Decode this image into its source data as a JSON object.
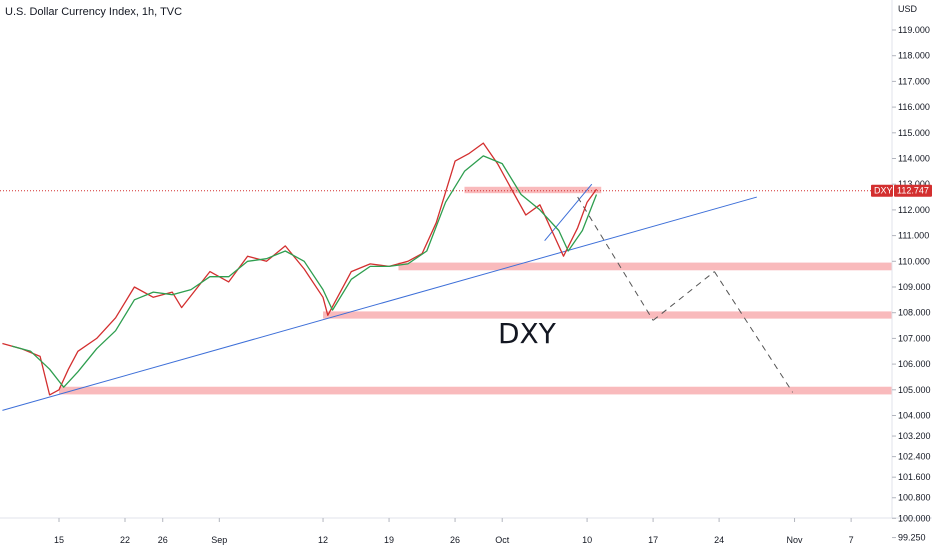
{
  "chart_data": {
    "type": "line",
    "title": "U.S. Dollar Currency Index, 1h, TVC",
    "currency_label": "USD",
    "ticker_badge": "DXY",
    "last_price_label": "112.747",
    "last_price": 112.747,
    "annotation": "DXY",
    "ylim": [
      99.25,
      119.2
    ],
    "yticks": [
      {
        "v": 119.0,
        "label": "119.000"
      },
      {
        "v": 118.0,
        "label": "118.000"
      },
      {
        "v": 117.0,
        "label": "117.000"
      },
      {
        "v": 116.0,
        "label": "116.000"
      },
      {
        "v": 115.0,
        "label": "115.000"
      },
      {
        "v": 114.0,
        "label": "114.000"
      },
      {
        "v": 113.0,
        "label": "113.000"
      },
      {
        "v": 112.0,
        "label": "112.000"
      },
      {
        "v": 111.0,
        "label": "111.000"
      },
      {
        "v": 110.0,
        "label": "110.000"
      },
      {
        "v": 109.0,
        "label": "109.000"
      },
      {
        "v": 108.0,
        "label": "108.000"
      },
      {
        "v": 107.0,
        "label": "107.000"
      },
      {
        "v": 106.0,
        "label": "106.000"
      },
      {
        "v": 105.0,
        "label": "105.000"
      },
      {
        "v": 104.0,
        "label": "104.000"
      },
      {
        "v": 103.2,
        "label": "103.200"
      },
      {
        "v": 102.4,
        "label": "102.400"
      },
      {
        "v": 101.6,
        "label": "101.600"
      },
      {
        "v": 100.8,
        "label": "100.800"
      },
      {
        "v": 100.0,
        "label": "100.000"
      },
      {
        "v": 99.25,
        "label": "99.250"
      }
    ],
    "xticks": [
      {
        "label": "15",
        "day": 0
      },
      {
        "label": "22",
        "day": 7
      },
      {
        "label": "26",
        "day": 11
      },
      {
        "label": "Sep",
        "day": 17
      },
      {
        "label": "12",
        "day": 28
      },
      {
        "label": "19",
        "day": 35
      },
      {
        "label": "26",
        "day": 42
      },
      {
        "label": "Oct",
        "day": 47
      },
      {
        "label": "10",
        "day": 56
      },
      {
        "label": "17",
        "day": 63
      },
      {
        "label": "24",
        "day": 70
      },
      {
        "label": "Nov",
        "day": 78
      },
      {
        "label": "7",
        "day": 84
      }
    ],
    "series": [
      {
        "color": "#d32f2f",
        "x": [
          -6,
          -4,
          -2,
          -1,
          0,
          1,
          2,
          4,
          6,
          8,
          10,
          12,
          13,
          16,
          18,
          20,
          22,
          24,
          26,
          28,
          28.5,
          31,
          33,
          35,
          37,
          38.5,
          40,
          42,
          43.5,
          45,
          46.5,
          48,
          49.5,
          51,
          52.5,
          53.5,
          55,
          56,
          57
        ],
        "y": [
          106.8,
          106.6,
          106.3,
          104.8,
          105.0,
          105.8,
          106.5,
          107.0,
          107.8,
          109.0,
          108.6,
          108.8,
          108.2,
          109.6,
          109.2,
          110.2,
          110.0,
          110.6,
          109.7,
          108.6,
          107.9,
          109.6,
          109.9,
          109.8,
          110.0,
          110.3,
          111.5,
          113.9,
          114.2,
          114.6,
          113.8,
          112.8,
          111.8,
          112.2,
          111.0,
          110.2,
          111.3,
          112.3,
          112.8
        ]
      },
      {
        "color": "#2e9e4f",
        "x": [
          -5,
          -3,
          -1,
          0.5,
          2,
          4,
          6,
          8,
          10,
          12,
          14,
          16,
          18,
          20,
          22,
          24,
          26,
          28,
          29,
          31,
          33,
          35,
          37,
          39,
          41,
          43,
          45,
          47,
          49,
          51,
          53,
          54,
          55.5,
          57
        ],
        "y": [
          106.7,
          106.5,
          105.8,
          105.1,
          105.7,
          106.6,
          107.3,
          108.5,
          108.8,
          108.7,
          108.9,
          109.4,
          109.4,
          110.0,
          110.1,
          110.4,
          110.0,
          108.9,
          108.1,
          109.3,
          109.8,
          109.8,
          109.9,
          110.4,
          112.3,
          113.5,
          114.1,
          113.8,
          112.6,
          112.0,
          111.2,
          110.4,
          111.2,
          112.6
        ]
      }
    ],
    "zones": [
      {
        "y1": 104.82,
        "y2": 105.12,
        "x1": 0,
        "x2": 94
      },
      {
        "y1": 107.77,
        "y2": 108.05,
        "x1": 28,
        "x2": 94
      },
      {
        "y1": 109.65,
        "y2": 109.95,
        "x1": 36,
        "x2": 94
      },
      {
        "y1": 112.65,
        "y2": 112.9,
        "x1": 43,
        "x2": 57.5
      }
    ],
    "trendlines": [
      {
        "x1": -6,
        "y1": 104.2,
        "x2": 74,
        "y2": 112.5,
        "style": "solid"
      },
      {
        "x1": 51.5,
        "y1": 110.8,
        "x2": 56.5,
        "y2": 113.0,
        "style": "solid"
      },
      {
        "x1": 55,
        "y1": 112.5,
        "x2": 63,
        "y2": 107.7,
        "style": "dashed"
      },
      {
        "x1": 63,
        "y1": 107.7,
        "x2": 69.5,
        "y2": 109.6,
        "style": "dashed"
      },
      {
        "x1": 69.5,
        "y1": 109.6,
        "x2": 77.8,
        "y2": 104.9,
        "style": "dashed"
      }
    ]
  }
}
